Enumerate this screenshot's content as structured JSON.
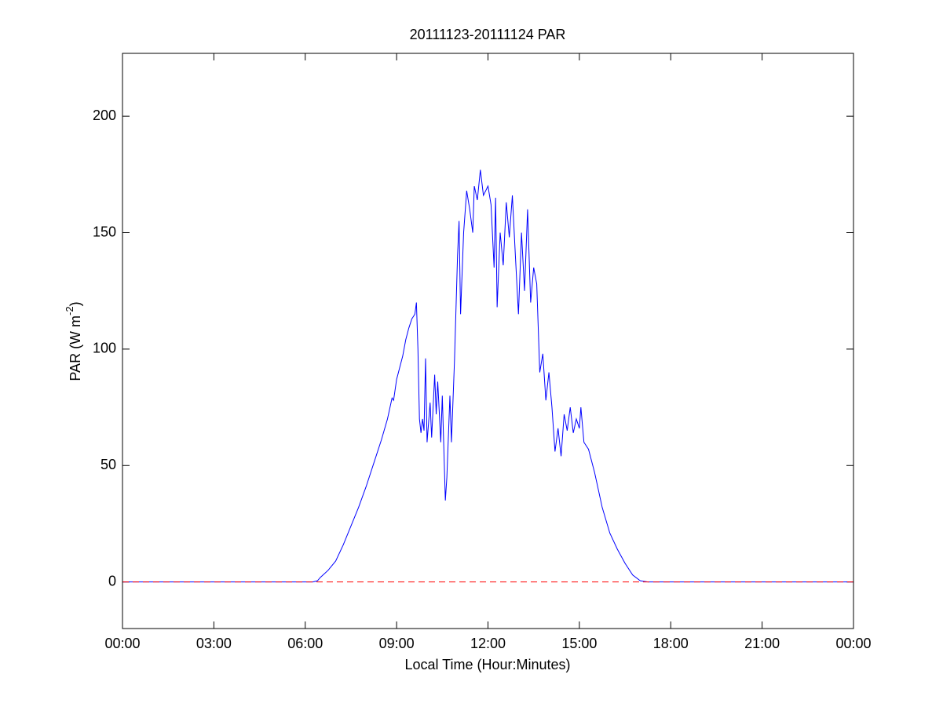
{
  "chart_data": {
    "type": "line",
    "title": "20111123-20111124 PAR",
    "xlabel": "Local Time (Hour:Minutes)",
    "ylabel_parts": [
      "PAR (W m",
      "-2",
      ")"
    ],
    "xlim": [
      0,
      24
    ],
    "ylim": [
      -20,
      227
    ],
    "xticks": [
      {
        "value": 0,
        "label": "00:00"
      },
      {
        "value": 3,
        "label": "03:00"
      },
      {
        "value": 6,
        "label": "06:00"
      },
      {
        "value": 9,
        "label": "09:00"
      },
      {
        "value": 12,
        "label": "12:00"
      },
      {
        "value": 15,
        "label": "15:00"
      },
      {
        "value": 18,
        "label": "18:00"
      },
      {
        "value": 21,
        "label": "21:00"
      },
      {
        "value": 24,
        "label": "00:00"
      }
    ],
    "yticks": [
      0,
      50,
      100,
      150,
      200
    ],
    "series": [
      {
        "color": "#0000ff",
        "style": "solid",
        "x": [
          0,
          6,
          6.25,
          6.4,
          6.5,
          6.75,
          7,
          7.25,
          7.5,
          7.75,
          8,
          8.25,
          8.5,
          8.7,
          8.85,
          8.9,
          9,
          9.1,
          9.2,
          9.3,
          9.4,
          9.5,
          9.6,
          9.65,
          9.7,
          9.75,
          9.8,
          9.85,
          9.9,
          9.95,
          10,
          10.1,
          10.15,
          10.25,
          10.3,
          10.35,
          10.45,
          10.5,
          10.6,
          10.65,
          10.75,
          10.8,
          10.9,
          11,
          11.05,
          11.1,
          11.2,
          11.3,
          11.4,
          11.5,
          11.55,
          11.65,
          11.75,
          11.85,
          12,
          12.1,
          12.2,
          12.25,
          12.3,
          12.4,
          12.5,
          12.6,
          12.7,
          12.8,
          12.9,
          13,
          13.1,
          13.2,
          13.3,
          13.4,
          13.5,
          13.6,
          13.7,
          13.8,
          13.9,
          14,
          14.1,
          14.2,
          14.3,
          14.4,
          14.5,
          14.6,
          14.7,
          14.8,
          14.9,
          15,
          15.05,
          15.15,
          15.3,
          15.5,
          15.75,
          16,
          16.25,
          16.5,
          16.75,
          17,
          17.25,
          24
        ],
        "values": [
          0,
          0,
          0,
          0.5,
          2,
          5,
          9,
          16,
          24,
          32,
          41,
          51,
          61,
          70,
          79,
          78,
          87,
          92,
          97,
          104,
          109,
          113,
          115,
          120,
          100,
          70,
          64,
          70,
          65,
          96,
          60,
          77,
          62,
          89,
          72,
          86,
          60,
          80,
          35,
          45,
          80,
          60,
          95,
          140,
          155,
          115,
          150,
          168,
          160,
          150,
          170,
          164,
          177,
          166,
          170,
          162,
          135,
          165,
          118,
          150,
          136,
          163,
          148,
          166,
          140,
          115,
          150,
          125,
          160,
          120,
          135,
          128,
          90,
          98,
          78,
          90,
          75,
          56,
          66,
          54,
          72,
          65,
          75,
          64,
          70,
          66,
          75,
          60,
          57,
          47,
          32,
          21,
          14,
          8,
          3,
          0.5,
          0,
          0
        ]
      },
      {
        "color": "#ff0000",
        "style": "dashed",
        "x": [
          0,
          24
        ],
        "values": [
          0,
          0
        ]
      }
    ]
  }
}
